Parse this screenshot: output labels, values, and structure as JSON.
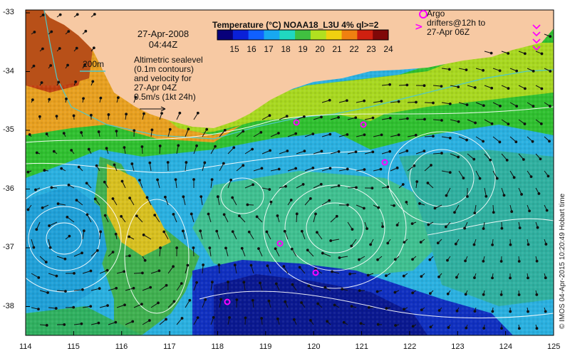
{
  "map": {
    "datetime_line1": "27-Apr-2008",
    "datetime_line2": "04:44Z",
    "legend_text": [
      "Altimetric sealevel",
      "(0.1m contours)",
      "and velocity for",
      "27-Apr 04Z",
      "0.5m/s (1kt 24h)"
    ],
    "isobath_label": "200m",
    "argo_text": [
      "Argo",
      "drifters@12h to",
      "27-Apr 06Z"
    ],
    "credit": "© IMOS 04-Apr-2015 10:20:49 Hobart time"
  },
  "colorbar": {
    "title": "Temperature (°C) NOAA18_L3U 4% ql>=2",
    "labels": [
      "15",
      "16",
      "17",
      "18",
      "19",
      "20",
      "21",
      "22",
      "23",
      "24"
    ],
    "colors": [
      "#08007a",
      "#0a20d8",
      "#1060ff",
      "#18a8f0",
      "#20d8c0",
      "#40c040",
      "#b0e020",
      "#f0d010",
      "#f08010",
      "#d02010",
      "#800808"
    ]
  },
  "axes": {
    "x_ticks": [
      "114",
      "115",
      "116",
      "117",
      "118",
      "119",
      "120",
      "121",
      "122",
      "123",
      "124",
      "125"
    ],
    "y_ticks": [
      "-33",
      "-34",
      "-35",
      "-36",
      "-37",
      "-38"
    ]
  },
  "colors": {
    "land": "#f7c9a3",
    "contour": "#ffffff",
    "isobath": "#4fc8c8",
    "argo": "#ff00ff",
    "arrow": "#111111"
  }
}
